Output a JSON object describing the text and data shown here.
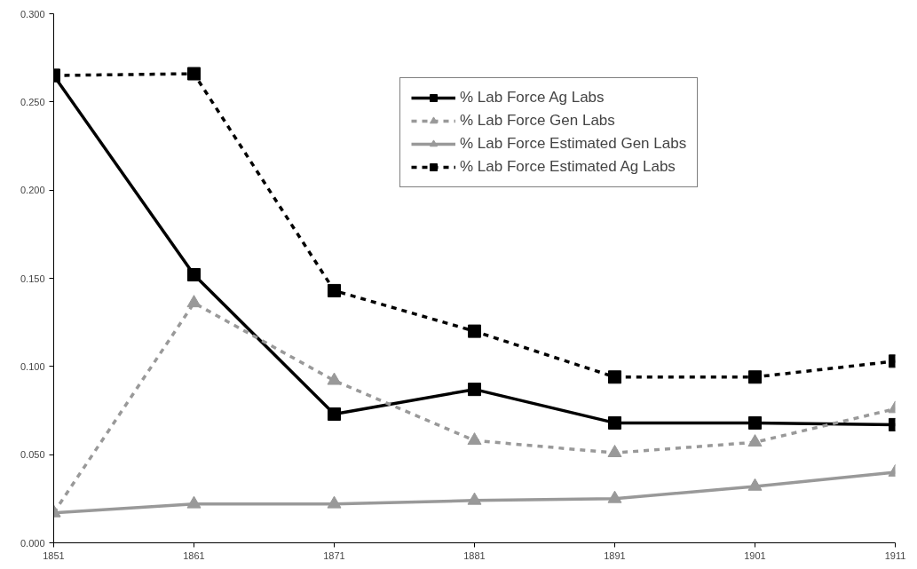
{
  "chart_data": {
    "type": "line",
    "x": [
      1851,
      1861,
      1871,
      1881,
      1891,
      1901,
      1911
    ],
    "xlim": [
      1851,
      1911
    ],
    "xticks": [
      1851,
      1861,
      1871,
      1881,
      1891,
      1901,
      1911
    ],
    "ylim": [
      0,
      0.3
    ],
    "yticks": [
      {
        "value": 0,
        "label": "0.000"
      },
      {
        "value": 0.05,
        "label": "0.050"
      },
      {
        "value": 0.1,
        "label": "0.100"
      },
      {
        "value": 0.15,
        "label": "0.150"
      },
      {
        "value": 0.2,
        "label": "0.200"
      },
      {
        "value": 0.25,
        "label": "0.250"
      },
      {
        "value": 0.3,
        "label": "0.300"
      }
    ],
    "grid": false,
    "legend": "top right",
    "series": [
      {
        "name": "% Lab Force Ag Labs",
        "color": "#000000",
        "marker": "square",
        "line_style": "solid",
        "values": [
          0.265,
          0.152,
          0.073,
          0.087,
          0.068,
          0.068,
          0.067
        ]
      },
      {
        "name": "% Lab Force Gen Labs",
        "color": "#999999",
        "marker": "triangle",
        "line_style": "dashed",
        "values": [
          0.017,
          0.136,
          0.092,
          0.058,
          0.051,
          0.057,
          0.076
        ]
      },
      {
        "name": "% Lab Force Estimated Gen Labs",
        "color": "#999999",
        "marker": "triangle",
        "line_style": "solid",
        "values": [
          0.017,
          0.022,
          0.022,
          0.024,
          0.025,
          0.032,
          0.04
        ]
      },
      {
        "name": "% Lab Force Estimated Ag Labs",
        "color": "#000000",
        "marker": "square",
        "line_style": "dashed",
        "values": [
          0.265,
          0.266,
          0.143,
          0.12,
          0.094,
          0.094,
          0.103
        ]
      }
    ]
  }
}
